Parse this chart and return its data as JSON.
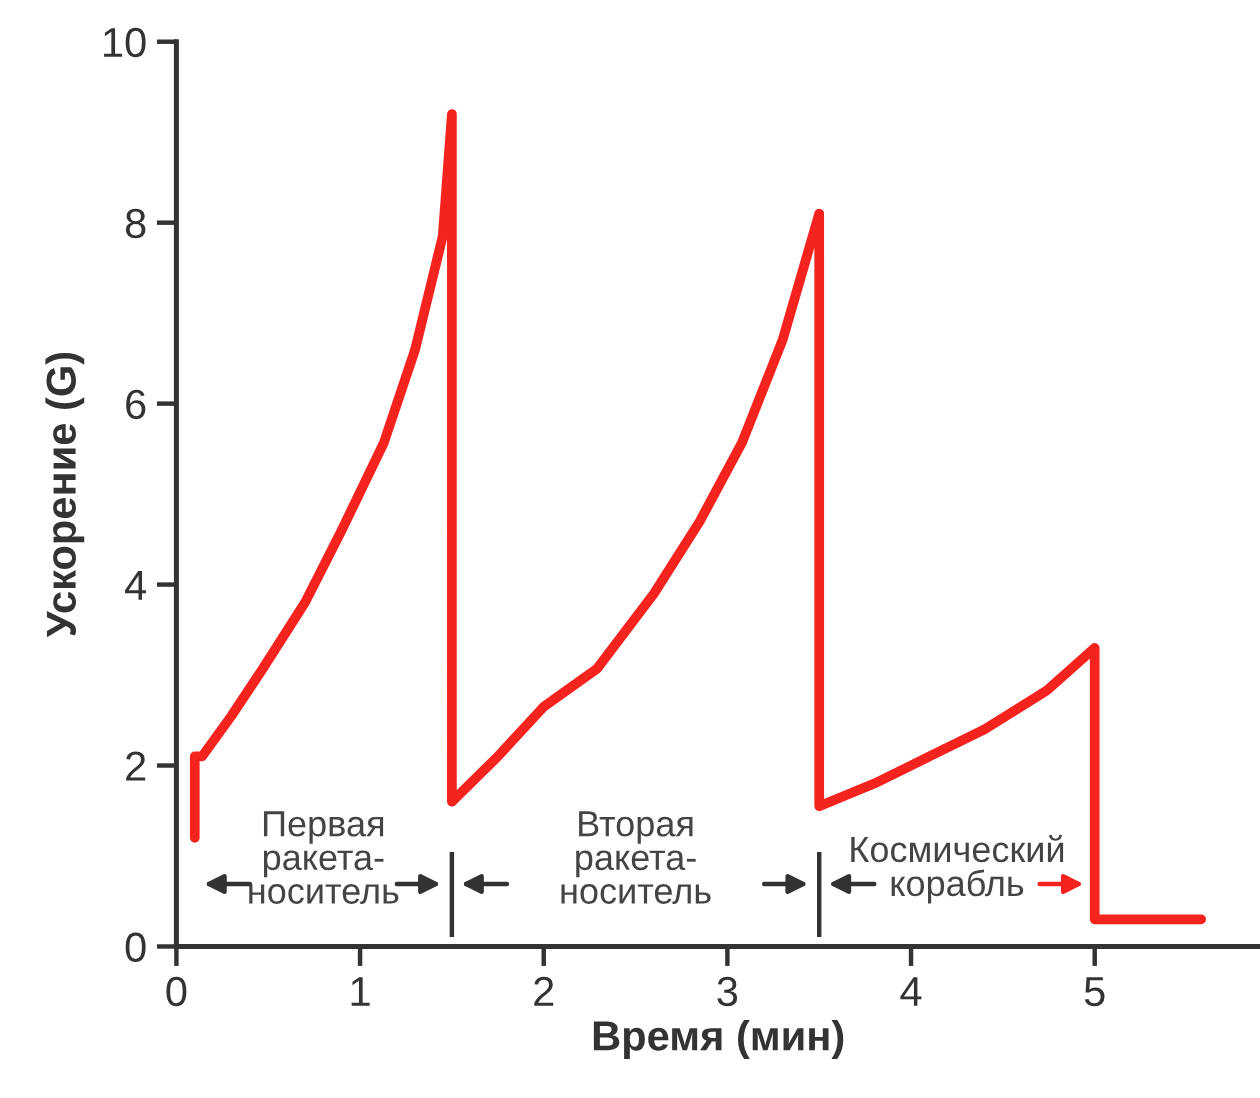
{
  "chart_data": {
    "type": "line",
    "xlabel": "Время (мин)",
    "ylabel": "Ускорение (G)",
    "series": [
      {
        "color": "#f5231e",
        "x": [
          0.1,
          0.1,
          0.14,
          0.3,
          0.47,
          0.7,
          0.9,
          1.13,
          1.3,
          1.45,
          1.5,
          1.5,
          1.75,
          2.0,
          2.29,
          2.6,
          2.85,
          3.08,
          3.3,
          3.42,
          3.5,
          3.5,
          3.8,
          4.1,
          4.4,
          4.74,
          5.0,
          5.0,
          5.58
        ],
        "values": [
          1.2,
          2.1,
          2.1,
          2.55,
          3.07,
          3.8,
          4.6,
          5.57,
          6.6,
          7.85,
          9.2,
          1.6,
          2.1,
          2.65,
          3.07,
          3.9,
          4.7,
          5.57,
          6.7,
          7.54,
          8.1,
          1.55,
          1.8,
          2.1,
          2.4,
          2.83,
          3.3,
          0.3,
          0.3
        ]
      }
    ],
    "annotations": [
      "Первая\nракета-\nноситель",
      "Вторая\nракета-\nноситель",
      "Космический\nкорабль"
    ],
    "xlim": [
      0,
      5.9
    ],
    "ylim": [
      0,
      10
    ],
    "xticks": [
      0,
      1,
      2,
      3,
      4,
      5
    ],
    "yticks": [
      0,
      2,
      4,
      6,
      8,
      10
    ],
    "grid": false,
    "legend": false,
    "marker": "none",
    "line_style": "solid"
  }
}
